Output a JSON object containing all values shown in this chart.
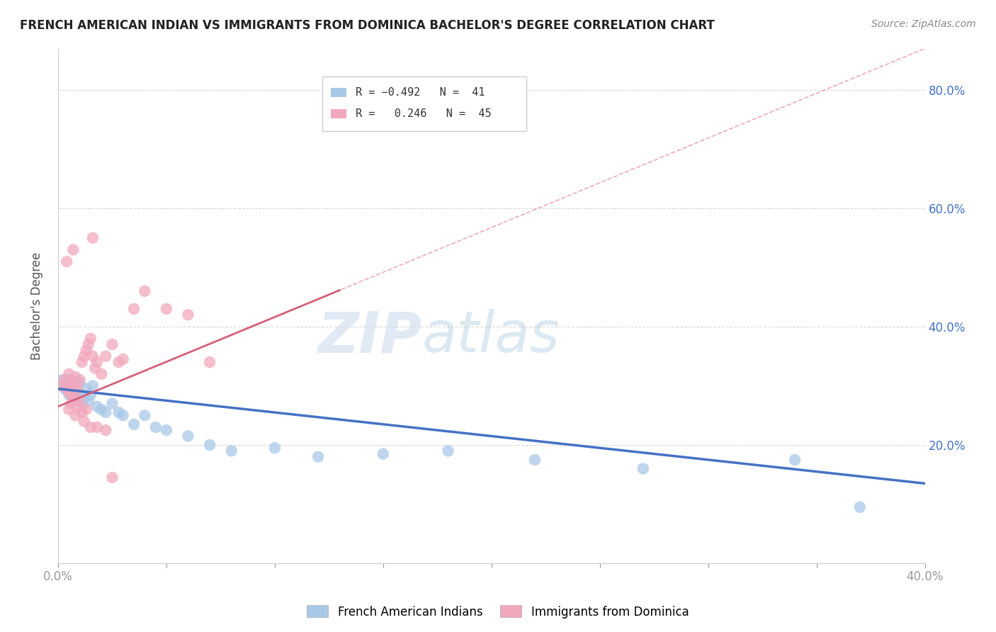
{
  "title": "FRENCH AMERICAN INDIAN VS IMMIGRANTS FROM DOMINICA BACHELOR'S DEGREE CORRELATION CHART",
  "source": "Source: ZipAtlas.com",
  "ylabel": "Bachelor's Degree",
  "xlim": [
    0.0,
    0.4
  ],
  "ylim": [
    0.0,
    0.87
  ],
  "blue_color": "#a8c8e8",
  "pink_color": "#f2a8bc",
  "blue_line_color": "#4472c4",
  "pink_line_color": "#d4607a",
  "pink_dash_color": "#e8a0b0",
  "watermark_zip": "ZIP",
  "watermark_atlas": "atlas",
  "blue_R": -0.492,
  "blue_N": 41,
  "pink_R": 0.246,
  "pink_N": 45,
  "blue_x": [
    0.002,
    0.003,
    0.004,
    0.005,
    0.005,
    0.006,
    0.006,
    0.007,
    0.007,
    0.008,
    0.008,
    0.009,
    0.01,
    0.01,
    0.011,
    0.012,
    0.013,
    0.014,
    0.015,
    0.016,
    0.018,
    0.02,
    0.022,
    0.025,
    0.028,
    0.03,
    0.035,
    0.04,
    0.045,
    0.05,
    0.06,
    0.07,
    0.08,
    0.1,
    0.12,
    0.15,
    0.18,
    0.22,
    0.27,
    0.34,
    0.37
  ],
  "blue_y": [
    0.31,
    0.295,
    0.305,
    0.285,
    0.3,
    0.29,
    0.31,
    0.28,
    0.295,
    0.275,
    0.29,
    0.3,
    0.285,
    0.305,
    0.27,
    0.28,
    0.295,
    0.275,
    0.285,
    0.3,
    0.265,
    0.26,
    0.255,
    0.27,
    0.255,
    0.25,
    0.235,
    0.25,
    0.23,
    0.225,
    0.215,
    0.2,
    0.19,
    0.195,
    0.18,
    0.185,
    0.19,
    0.175,
    0.16,
    0.175,
    0.095
  ],
  "pink_x": [
    0.002,
    0.003,
    0.004,
    0.005,
    0.005,
    0.006,
    0.006,
    0.007,
    0.008,
    0.008,
    0.009,
    0.01,
    0.01,
    0.011,
    0.012,
    0.013,
    0.014,
    0.015,
    0.016,
    0.017,
    0.018,
    0.02,
    0.022,
    0.025,
    0.028,
    0.03,
    0.035,
    0.04,
    0.05,
    0.06,
    0.07,
    0.005,
    0.008,
    0.012,
    0.015,
    0.006,
    0.009,
    0.011,
    0.013,
    0.018,
    0.022,
    0.004,
    0.007,
    0.016,
    0.025
  ],
  "pink_y": [
    0.3,
    0.31,
    0.295,
    0.32,
    0.29,
    0.305,
    0.285,
    0.3,
    0.315,
    0.28,
    0.295,
    0.31,
    0.275,
    0.34,
    0.35,
    0.36,
    0.37,
    0.38,
    0.35,
    0.33,
    0.34,
    0.32,
    0.35,
    0.37,
    0.34,
    0.345,
    0.43,
    0.46,
    0.43,
    0.42,
    0.34,
    0.26,
    0.25,
    0.24,
    0.23,
    0.27,
    0.265,
    0.255,
    0.26,
    0.23,
    0.225,
    0.51,
    0.53,
    0.55,
    0.145
  ],
  "blue_line_x0": 0.0,
  "blue_line_y0": 0.295,
  "blue_line_x1": 0.4,
  "blue_line_y1": 0.135,
  "pink_line_x0": 0.0,
  "pink_line_y0": 0.265,
  "pink_line_x1": 0.4,
  "pink_line_y1": 0.87
}
